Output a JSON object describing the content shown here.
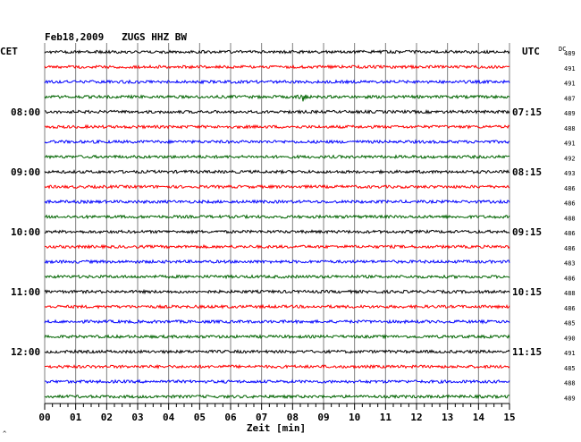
{
  "chart_data": {
    "type": "line",
    "title": "Feb18,2009   ZUGS HHZ BW",
    "left_timezone": "CET",
    "right_timezone": "UTC",
    "dc_label": "DC",
    "xlabel": "Zeit [min]",
    "x_ticks": [
      "00",
      "01",
      "02",
      "03",
      "04",
      "05",
      "06",
      "07",
      "08",
      "09",
      "10",
      "11",
      "12",
      "13",
      "14",
      "15"
    ],
    "xlim": [
      0,
      15
    ],
    "grid": true,
    "corner_mark": "^",
    "trace_colors": [
      "#000000",
      "#ff0000",
      "#0000ff",
      "#006400"
    ],
    "rows": [
      {
        "dc": "489"
      },
      {
        "dc": "491"
      },
      {
        "dc": "491"
      },
      {
        "dc": "487"
      },
      {
        "dc": "489",
        "cet": "08:00",
        "utc": "07:15"
      },
      {
        "dc": "488"
      },
      {
        "dc": "491"
      },
      {
        "dc": "492"
      },
      {
        "dc": "493",
        "cet": "09:00",
        "utc": "08:15"
      },
      {
        "dc": "486"
      },
      {
        "dc": "486"
      },
      {
        "dc": "488"
      },
      {
        "dc": "486",
        "cet": "10:00",
        "utc": "09:15"
      },
      {
        "dc": "486"
      },
      {
        "dc": "483"
      },
      {
        "dc": "486"
      },
      {
        "dc": "488",
        "cet": "11:00",
        "utc": "10:15"
      },
      {
        "dc": "486"
      },
      {
        "dc": "485"
      },
      {
        "dc": "490"
      },
      {
        "dc": "491",
        "cet": "12:00",
        "utc": "11:15"
      },
      {
        "dc": "485"
      },
      {
        "dc": "488"
      },
      {
        "dc": "489"
      }
    ],
    "events": [
      {
        "row": 3,
        "minute": 8.3,
        "label": ""
      }
    ]
  }
}
